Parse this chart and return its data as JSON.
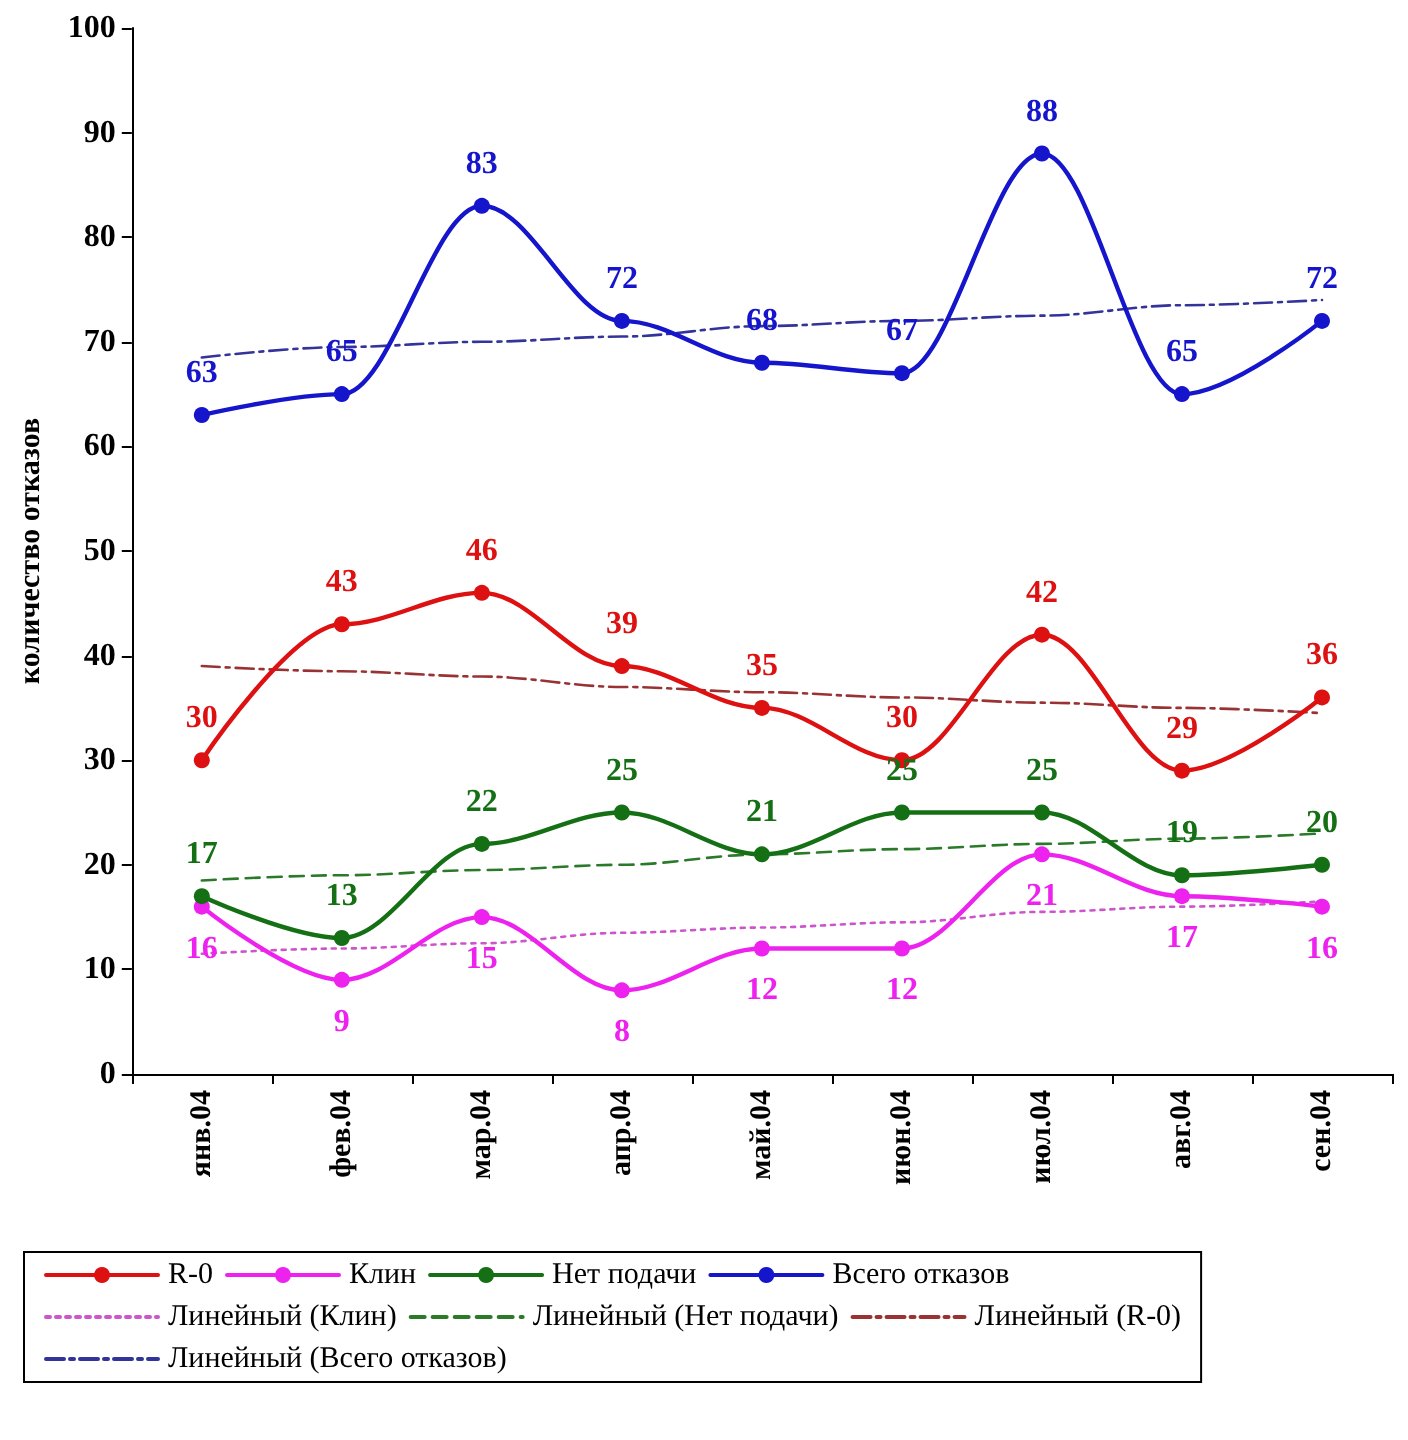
{
  "chart_data": {
    "type": "line",
    "ylabel": "количество отказов",
    "categories": [
      "янв.04",
      "фев.04",
      "мар.04",
      "апр.04",
      "май.04",
      "июн.04",
      "июл.04",
      "авг.04",
      "сен.04"
    ],
    "ylim": [
      0,
      100
    ],
    "yticks": [
      0,
      10,
      20,
      30,
      40,
      50,
      60,
      70,
      80,
      90,
      100
    ],
    "grid": false,
    "legend": "bottom",
    "marker": "circle",
    "series": [
      {
        "name": "R-0",
        "color": "#dd1111",
        "values": [
          30,
          43,
          46,
          39,
          35,
          30,
          42,
          29,
          36
        ],
        "value_labels": [
          "30",
          "43",
          "46",
          "39",
          "35",
          "30",
          "42",
          "29",
          "36"
        ],
        "line_style": "solid"
      },
      {
        "name": "Клин",
        "color": "#ee22ee",
        "values": [
          16,
          9,
          15,
          8,
          12,
          12,
          21,
          17,
          16
        ],
        "value_labels": [
          "16",
          "9",
          "15",
          "8",
          "12",
          "12",
          "21",
          "17",
          "16"
        ],
        "line_style": "solid"
      },
      {
        "name": "Нет подачи",
        "color": "#157015",
        "values": [
          17,
          13,
          22,
          25,
          21,
          25,
          25,
          19,
          20
        ],
        "value_labels": [
          "17",
          "13",
          "22",
          "25",
          "21",
          "25",
          "25",
          "19",
          "20"
        ],
        "line_style": "solid"
      },
      {
        "name": "Всего отказов",
        "color": "#1515cc",
        "values": [
          63,
          65,
          83,
          72,
          68,
          67,
          88,
          65,
          72
        ],
        "value_labels": [
          "63",
          "65",
          "83",
          "72",
          "68",
          "67",
          "88",
          "65",
          "72"
        ],
        "line_style": "solid"
      },
      {
        "name": "Линейный (Клин)",
        "color": "#cc55cc",
        "values": [
          11.5,
          12,
          12.5,
          13.5,
          14,
          14.5,
          15.5,
          16,
          16.5
        ],
        "line_style": "dotted",
        "marker": "none"
      },
      {
        "name": "Линейный (Нет подачи)",
        "color": "#2a7a2a",
        "values": [
          18.5,
          19,
          19.5,
          20,
          21,
          21.5,
          22,
          22.5,
          23
        ],
        "line_style": "dashed",
        "marker": "none"
      },
      {
        "name": "Линейный (R-0)",
        "color": "#993333",
        "values": [
          39,
          38.5,
          38,
          37,
          36.5,
          36,
          35.5,
          35,
          34.5
        ],
        "line_style": "dashdot",
        "marker": "none"
      },
      {
        "name": "Линейный (Всего отказов)",
        "color": "#333399",
        "values": [
          68.5,
          69.5,
          70,
          70.5,
          71.5,
          72,
          72.5,
          73.5,
          74
        ],
        "line_style": "dashdot",
        "marker": "none"
      }
    ]
  }
}
